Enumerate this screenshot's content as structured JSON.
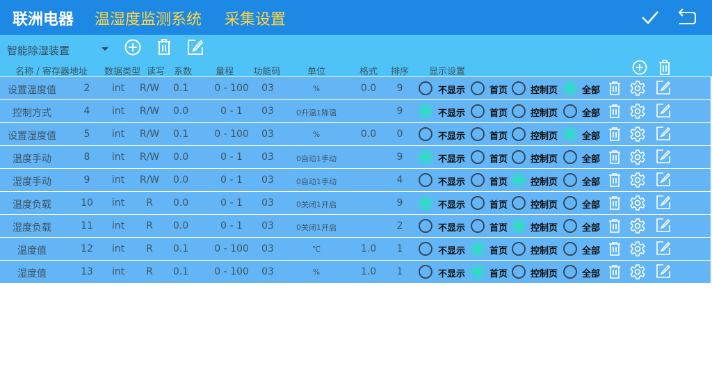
{
  "header": {
    "brand": "联洲电器",
    "system": "温湿度监测系统",
    "page": "采集设置",
    "confirm_icon": "check-icon",
    "back_icon": "return-icon"
  },
  "toolbar": {
    "device_select": "智能除湿装置"
  },
  "columns": {
    "name": "名称 / 寄存器地址",
    "type": "数据类型",
    "rw": "读写",
    "coef": "系数",
    "range": "量程",
    "func": "功能码",
    "unit": "单位",
    "format": "格式",
    "sort": "排序",
    "display": "显示设置"
  },
  "display_options": [
    "不显示",
    "首页",
    "控制页",
    "全部"
  ],
  "rows": [
    {
      "name": "设置温度值",
      "addr": "2",
      "type": "int",
      "rw": "R/W",
      "coef": "0.1",
      "range": "0 - 100",
      "func": "03",
      "unit": "%",
      "format": "0.0",
      "sort": "9",
      "display": 3
    },
    {
      "name": "控制方式",
      "addr": "4",
      "type": "int",
      "rw": "R/W",
      "coef": "0.0",
      "range": "0 - 1",
      "func": "03",
      "unit": "0升温1降温",
      "format": "",
      "sort": "9",
      "display": 0
    },
    {
      "name": "设置湿度值",
      "addr": "5",
      "type": "int",
      "rw": "R/W",
      "coef": "0.1",
      "range": "0 - 100",
      "func": "03",
      "unit": "%",
      "format": "0.0",
      "sort": "0",
      "display": 3
    },
    {
      "name": "温度手动",
      "addr": "8",
      "type": "int",
      "rw": "R/W",
      "coef": "0.0",
      "range": "0 - 1",
      "func": "03",
      "unit": "0自动1手动",
      "format": "",
      "sort": "9",
      "display": 0
    },
    {
      "name": "湿度手动",
      "addr": "9",
      "type": "int",
      "rw": "R/W",
      "coef": "0.0",
      "range": "0 - 1",
      "func": "03",
      "unit": "0自动1手动",
      "format": "",
      "sort": "4",
      "display": 2
    },
    {
      "name": "温度负载",
      "addr": "10",
      "type": "int",
      "rw": "R",
      "coef": "0.0",
      "range": "0 - 1",
      "func": "03",
      "unit": "0关闭1开启",
      "format": "",
      "sort": "9",
      "display": 0
    },
    {
      "name": "湿度负载",
      "addr": "11",
      "type": "int",
      "rw": "R",
      "coef": "0.0",
      "range": "0 - 1",
      "func": "03",
      "unit": "0关闭1开启",
      "format": "",
      "sort": "2",
      "display": 2
    },
    {
      "name": "温度值",
      "addr": "12",
      "type": "int",
      "rw": "R",
      "coef": "0.1",
      "range": "0 - 100",
      "func": "03",
      "unit": "℃",
      "format": "1.0",
      "sort": "1",
      "display": 1
    },
    {
      "name": "湿度值",
      "addr": "13",
      "type": "int",
      "rw": "R",
      "coef": "0.1",
      "range": "0 - 100",
      "func": "03",
      "unit": "%",
      "format": "1.0",
      "sort": "1",
      "display": 1
    }
  ],
  "colors": {
    "topbar": "#1e88e5",
    "toolbar": "#4fc3f7",
    "row": "#64b5f6",
    "accent_title": "#ffd740",
    "radio_on": "#1de9b6"
  }
}
